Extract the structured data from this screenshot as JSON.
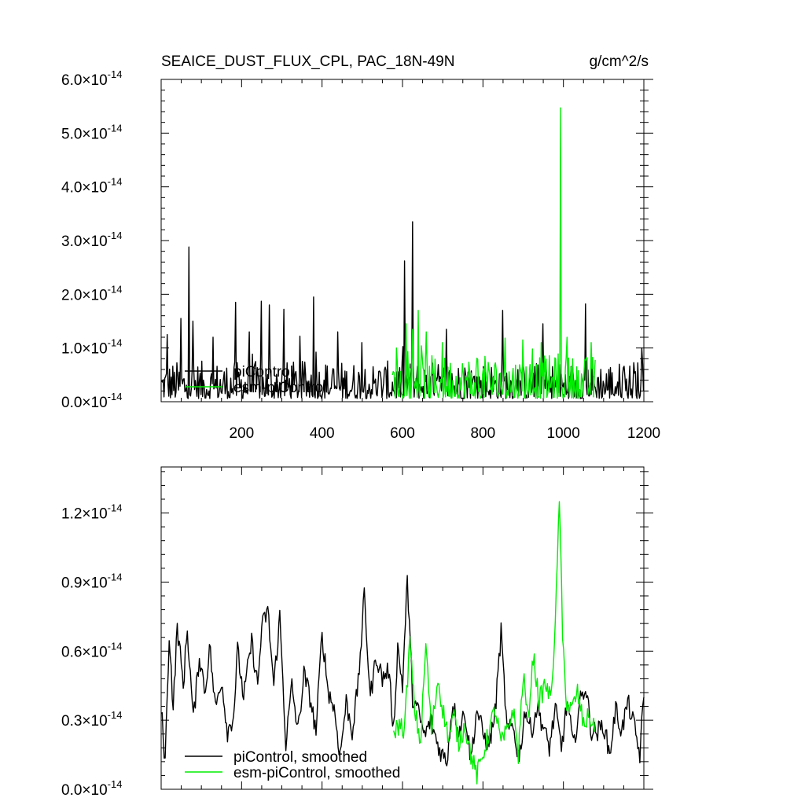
{
  "header": {
    "title": "SEAICE_DUST_FLUX_CPL, PAC_18N-49N",
    "units": "g/cm^2/s"
  },
  "colors": {
    "piControl": "#000000",
    "esm_piControl": "#00ee00",
    "axes": "#000000"
  },
  "chart_data": [
    {
      "type": "line",
      "title": "SEAICE_DUST_FLUX_CPL, PAC_18N-49N",
      "units": "g/cm^2/s",
      "xlim": [
        0,
        1200
      ],
      "ylim": [
        0,
        6e-14
      ],
      "x_ticks": [
        200,
        400,
        600,
        800,
        1000,
        1200
      ],
      "y_ticks": [
        {
          "value": 0,
          "mant": "0.0",
          "exp": "-14"
        },
        {
          "value": 1e-14,
          "mant": "1.0",
          "exp": "-14"
        },
        {
          "value": 2e-14,
          "mant": "2.0",
          "exp": "-14"
        },
        {
          "value": 3e-14,
          "mant": "3.0",
          "exp": "-14"
        },
        {
          "value": 4e-14,
          "mant": "4.0",
          "exp": "-14"
        },
        {
          "value": 5e-14,
          "mant": "5.0",
          "exp": "-14"
        },
        {
          "value": 6e-14,
          "mant": "6.0",
          "exp": "-14"
        }
      ],
      "legend": "lower-left",
      "series": [
        {
          "name": "piControl",
          "color": "#000000",
          "x_range": [
            1,
            1200
          ],
          "base": 3e-15,
          "noise": 2.5e-15,
          "peaks": [
            [
              15,
              1.25e-14
            ],
            [
              50,
              1.55e-14
            ],
            [
              70,
              2.88e-14
            ],
            [
              80,
              1.5e-14
            ],
            [
              130,
              1.2e-14
            ],
            [
              185,
              1.85e-14
            ],
            [
              220,
              1.3e-14
            ],
            [
              250,
              1.87e-14
            ],
            [
              270,
              1.8e-14
            ],
            [
              305,
              1.72e-14
            ],
            [
              345,
              1.22e-14
            ],
            [
              380,
              1.95e-14
            ],
            [
              440,
              1.3e-14
            ],
            [
              500,
              1.1e-14
            ],
            [
              605,
              2.62e-14
            ],
            [
              625,
              3.35e-14
            ],
            [
              710,
              1.35e-14
            ],
            [
              850,
              1.7e-14
            ],
            [
              950,
              1.45e-14
            ],
            [
              1055,
              1.82e-14
            ],
            [
              1195,
              1e-14
            ]
          ]
        },
        {
          "name": "esm-piControl",
          "color": "#00ee00",
          "x_range": [
            575,
            1080
          ],
          "base": 3.2e-15,
          "noise": 3e-15,
          "peaks": [
            [
              585,
              1e-14
            ],
            [
              610,
              1.45e-14
            ],
            [
              625,
              1.35e-14
            ],
            [
              640,
              1.7e-14
            ],
            [
              660,
              1.3e-14
            ],
            [
              700,
              1.1e-14
            ],
            [
              900,
              1.15e-14
            ],
            [
              945,
              1.1e-14
            ],
            [
              993,
              5.47e-14
            ],
            [
              1010,
              1.2e-14
            ],
            [
              1070,
              1.1e-14
            ]
          ]
        }
      ]
    },
    {
      "type": "line",
      "xlim": [
        0,
        1200
      ],
      "ylim": [
        0,
        1.4e-14
      ],
      "x_ticks": [
        200,
        400,
        600,
        800,
        1000,
        1200
      ],
      "y_ticks": [
        {
          "value": 0,
          "mant": "0.0",
          "exp": "-14"
        },
        {
          "value": 3e-15,
          "mant": "0.3",
          "exp": "-14"
        },
        {
          "value": 6e-15,
          "mant": "0.6",
          "exp": "-14"
        },
        {
          "value": 9e-15,
          "mant": "0.9",
          "exp": "-14"
        },
        {
          "value": 1.2e-14,
          "mant": "1.2",
          "exp": "-14"
        }
      ],
      "legend": "lower-left",
      "series": [
        {
          "name": "piControl, smoothed",
          "color": "#000000",
          "x_range": [
            1,
            1200
          ],
          "points": [
            [
              0,
              3.5e-15
            ],
            [
              10,
              1.2e-15
            ],
            [
              20,
              6.8e-15
            ],
            [
              30,
              3.5e-15
            ],
            [
              40,
              7.1e-15
            ],
            [
              55,
              4.5e-15
            ],
            [
              65,
              7e-15
            ],
            [
              80,
              3e-15
            ],
            [
              95,
              5.8e-15
            ],
            [
              110,
              4.2e-15
            ],
            [
              120,
              6.3e-15
            ],
            [
              135,
              3.5e-15
            ],
            [
              150,
              4.8e-15
            ],
            [
              165,
              2.5e-15
            ],
            [
              180,
              3.2e-15
            ],
            [
              190,
              6e-15
            ],
            [
              205,
              4e-15
            ],
            [
              225,
              6.4e-15
            ],
            [
              240,
              4.5e-15
            ],
            [
              250,
              7e-15
            ],
            [
              265,
              7.8e-15
            ],
            [
              280,
              4.5e-15
            ],
            [
              295,
              7.5e-15
            ],
            [
              310,
              2e-15
            ],
            [
              325,
              4.5e-15
            ],
            [
              340,
              2.5e-15
            ],
            [
              355,
              5e-15
            ],
            [
              370,
              4e-15
            ],
            [
              385,
              2.5e-15
            ],
            [
              400,
              6.8e-15
            ],
            [
              415,
              4.3e-15
            ],
            [
              430,
              3.5e-15
            ],
            [
              445,
              1.5e-15
            ],
            [
              460,
              3.8e-15
            ],
            [
              475,
              2.5e-15
            ],
            [
              490,
              4.6e-15
            ],
            [
              505,
              8.4e-15
            ],
            [
              520,
              4e-15
            ],
            [
              535,
              5.8e-15
            ],
            [
              550,
              4.8e-15
            ],
            [
              565,
              5.2e-15
            ],
            [
              578,
              2.6e-15
            ],
            [
              588,
              6.2e-15
            ],
            [
              600,
              4.5e-15
            ],
            [
              612,
              9.1e-15
            ],
            [
              625,
              4e-15
            ],
            [
              640,
              3.3e-15
            ],
            [
              655,
              2.3e-15
            ],
            [
              670,
              3e-15
            ],
            [
              690,
              1.8e-15
            ],
            [
              710,
              1.2e-15
            ],
            [
              725,
              3.8e-15
            ],
            [
              740,
              2.5e-15
            ],
            [
              755,
              3.4e-15
            ],
            [
              770,
              1.3e-15
            ],
            [
              785,
              3.5e-15
            ],
            [
              800,
              2.4e-15
            ],
            [
              815,
              1.9e-15
            ],
            [
              830,
              3.3e-15
            ],
            [
              845,
              6.8e-15
            ],
            [
              860,
              2.5e-15
            ],
            [
              875,
              2.7e-15
            ],
            [
              890,
              1.3e-15
            ],
            [
              905,
              3.5e-15
            ],
            [
              920,
              2.5e-15
            ],
            [
              935,
              3.6e-15
            ],
            [
              950,
              2.7e-15
            ],
            [
              965,
              1.8e-15
            ],
            [
              980,
              3.5e-15
            ],
            [
              995,
              1.8e-15
            ],
            [
              1010,
              3.8e-15
            ],
            [
              1025,
              1.8e-15
            ],
            [
              1040,
              3.7e-15
            ],
            [
              1055,
              4.5e-15
            ],
            [
              1070,
              2.5e-15
            ],
            [
              1085,
              2.5e-15
            ],
            [
              1100,
              2.8e-15
            ],
            [
              1115,
              1.5e-15
            ],
            [
              1130,
              3.5e-15
            ],
            [
              1145,
              2.5e-15
            ],
            [
              1160,
              3.8e-15
            ],
            [
              1175,
              2.8e-15
            ],
            [
              1190,
              1.5e-15
            ],
            [
              1200,
              4e-15
            ]
          ]
        },
        {
          "name": "esm-piControl, smoothed",
          "color": "#00ee00",
          "x_range": [
            575,
            1080
          ],
          "points": [
            [
              578,
              2.5e-15
            ],
            [
              592,
              2.8e-15
            ],
            [
              605,
              2.6e-15
            ],
            [
              618,
              6.4e-15
            ],
            [
              630,
              3.5e-15
            ],
            [
              645,
              2e-15
            ],
            [
              658,
              6.3e-15
            ],
            [
              672,
              2.5e-15
            ],
            [
              688,
              4.8e-15
            ],
            [
              700,
              3.5e-15
            ],
            [
              715,
              2.2e-15
            ],
            [
              728,
              3.2e-15
            ],
            [
              740,
              2e-15
            ],
            [
              755,
              2.8e-15
            ],
            [
              770,
              1.5e-15
            ],
            [
              785,
              6e-16
            ],
            [
              800,
              1.5e-15
            ],
            [
              815,
              2.5e-15
            ],
            [
              830,
              3.5e-15
            ],
            [
              845,
              2e-15
            ],
            [
              860,
              2.5e-15
            ],
            [
              875,
              3.5e-15
            ],
            [
              888,
              1.5e-15
            ],
            [
              900,
              5e-15
            ],
            [
              912,
              3e-15
            ],
            [
              925,
              5.8e-15
            ],
            [
              940,
              3.8e-15
            ],
            [
              955,
              4.6e-15
            ],
            [
              968,
              3.9e-15
            ],
            [
              980,
              7e-15
            ],
            [
              990,
              1.28e-14
            ],
            [
              998,
              6.5e-15
            ],
            [
              1008,
              3.8e-15
            ],
            [
              1020,
              3.4e-15
            ],
            [
              1035,
              4.2e-15
            ],
            [
              1050,
              2.8e-15
            ],
            [
              1065,
              3.2e-15
            ],
            [
              1078,
              2.5e-15
            ]
          ]
        }
      ]
    }
  ]
}
